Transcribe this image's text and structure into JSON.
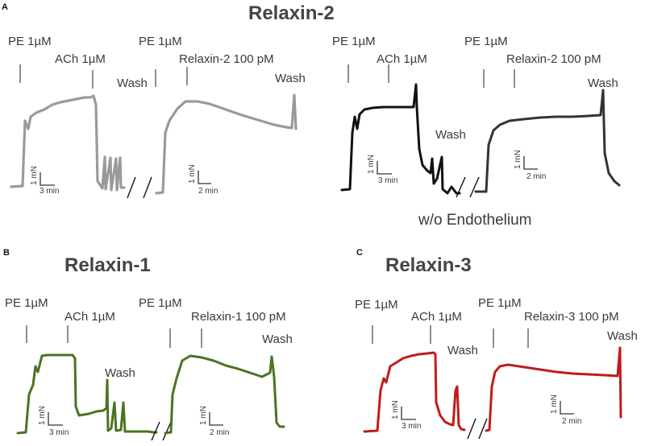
{
  "panels": {
    "a": {
      "letter": "A",
      "title": "Relaxin-2",
      "subtitle": "w/o Endothelium",
      "left": {
        "pe1": "PE 1µM",
        "ach": "ACh 1µM",
        "wash1": "Wash",
        "pe2": "PE 1µM",
        "relaxin": "Relaxin-2 100 pM",
        "wash2": "Wash",
        "scale1_y": "1 mN",
        "scale1_x": "3 min",
        "scale2_y": "1 mN",
        "scale2_x": "2 min"
      },
      "right": {
        "pe1": "PE 1µM",
        "ach": "ACh 1µM",
        "wash1": "Wash",
        "pe2": "PE 1µM",
        "relaxin": "Relaxin-2 100 pM",
        "wash2": "Wash",
        "scale1_y": "1 mN",
        "scale1_x": "3 min",
        "scale2_y": "1 mN",
        "scale2_x": "2 min"
      }
    },
    "b": {
      "letter": "B",
      "title": "Relaxin-1",
      "pe1": "PE 1µM",
      "ach": "ACh 1µM",
      "wash1": "Wash",
      "pe2": "PE 1µM",
      "relaxin": "Relaxin-1 100 pM",
      "wash2": "Wash",
      "scale1_y": "1 mN",
      "scale1_x": "3 min",
      "scale2_y": "1 mN",
      "scale2_x": "2 min"
    },
    "c": {
      "letter": "C",
      "title": "Relaxin-3",
      "pe1": "PE 1µM",
      "ach": "ACh 1µM",
      "wash1": "Wash",
      "pe2": "PE 1µM",
      "relaxin": "Relaxin-3 100 pM",
      "wash2": "Wash",
      "scale1_y": "1 mN",
      "scale1_x": "3 min",
      "scale2_y": "1 mN",
      "scale2_x": "2 min"
    }
  },
  "colors": {
    "relaxin2_intact": "#9a9a9a",
    "relaxin2_no_endothelium_ach": "#111111",
    "relaxin2_no_endothelium_relaxin": "#333333",
    "relaxin1": "#4a7420",
    "relaxin3": "#c01c1c"
  }
}
